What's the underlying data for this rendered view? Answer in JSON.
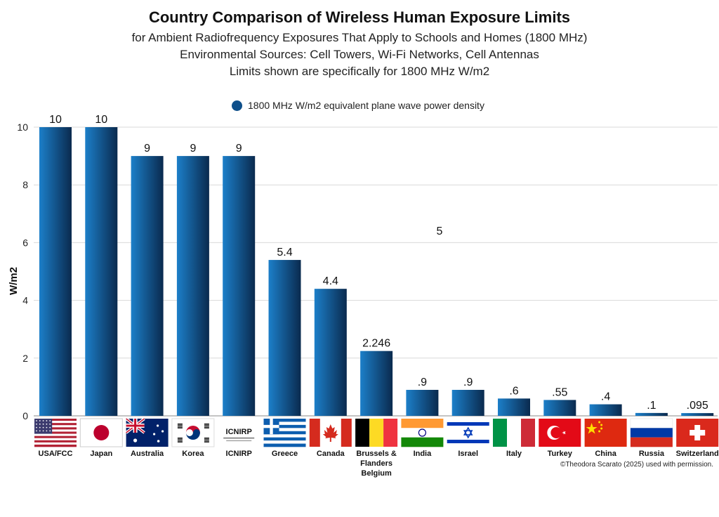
{
  "title": "Country Comparison of Wireless Human Exposure Limits",
  "subtitles": [
    "for Ambient Radiofrequency Exposures That Apply to Schools and Homes (1800 MHz)",
    "Environmental Sources: Cell Towers, Wi-Fi Networks, Cell Antennas",
    "Limits shown are specifically for 1800 MHz W/m2"
  ],
  "credit": "©Theodora Scarato (2025) used with permission.",
  "colors": {
    "bar_light": "#1c7fc9",
    "bar_dark": "#0a2a4e",
    "legend": "#0e4f8a"
  },
  "chart_data": {
    "type": "bar",
    "categories": [
      "USA/FCC",
      "Japan",
      "Australia",
      "Korea",
      "ICNIRP",
      "Greece",
      "Canada",
      "Brussels & Flanders Belgium",
      "India",
      "Israel",
      "Italy",
      "Turkey",
      "China",
      "Russia",
      "Switzerland"
    ],
    "category_lines": [
      [
        "USA/FCC"
      ],
      [
        "Japan"
      ],
      [
        "Australia"
      ],
      [
        "Korea"
      ],
      [
        "ICNIRP"
      ],
      [
        "Greece"
      ],
      [
        "Canada"
      ],
      [
        "Brussels &",
        "Flanders",
        "Belgium"
      ],
      [
        "India"
      ],
      [
        "Israel"
      ],
      [
        "Italy"
      ],
      [
        "Turkey"
      ],
      [
        "China"
      ],
      [
        "Russia"
      ],
      [
        "Switzerland"
      ]
    ],
    "series": [
      {
        "name": "1800 MHz W/m2 equivalent plane wave power density",
        "values": [
          10,
          10,
          9,
          9,
          9,
          5.4,
          4.4,
          2.246,
          0.9,
          0.9,
          0.6,
          0.55,
          0.4,
          0.1,
          0.095
        ],
        "labels": [
          "10",
          "10",
          "9",
          "9",
          "9",
          "5.4",
          "4.4",
          "2.246",
          ".9",
          ".9",
          ".6",
          ".55",
          ".4",
          ".1",
          ".095"
        ]
      }
    ],
    "flags": [
      "us-flag-icon",
      "japan-flag-icon",
      "australia-flag-icon",
      "korea-flag-icon",
      "icnirp-logo",
      "greece-flag-icon",
      "canada-flag-icon",
      "belgium-flag-icon",
      "india-flag-icon",
      "israel-flag-icon",
      "italy-flag-icon",
      "turkey-flag-icon",
      "china-flag-icon",
      "russia-flag-icon",
      "switzerland-flag-icon"
    ],
    "icnirp_logo_text": "ICNIRP",
    "annotation": "5",
    "ylabel": "W/m2",
    "xlabel": "",
    "ylim": [
      0,
      10
    ],
    "yticks": [
      0,
      2,
      4,
      6,
      8,
      10
    ],
    "grid": true,
    "legend_position": "top-center"
  }
}
